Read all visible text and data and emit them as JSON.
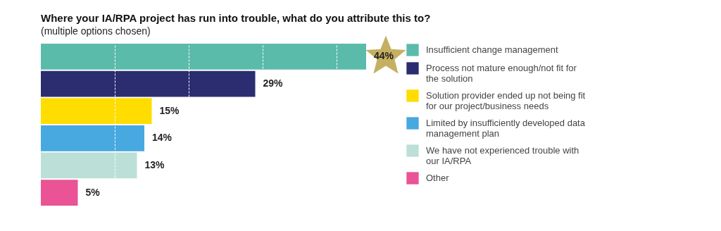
{
  "chart_data": {
    "type": "bar",
    "orientation": "horizontal",
    "title": "Where your IA/RPA project has run into trouble, what do you attribute this to?",
    "subtitle": "(multiple options chosen)",
    "categories": [
      null,
      null,
      null,
      null,
      null,
      null
    ],
    "series": [
      {
        "name": "Insufficient change management",
        "color": "#5bbbab",
        "values": [
          44,
          null,
          null,
          null,
          null,
          null
        ],
        "value_labels": [
          "44%",
          null,
          null,
          null,
          null,
          null
        ]
      },
      {
        "name": "Process not mature enough/not fit for the solution",
        "color": "#2b2d70",
        "values": [
          null,
          29,
          null,
          null,
          null,
          null
        ],
        "value_labels": [
          null,
          "29%",
          null,
          null,
          null,
          null
        ]
      },
      {
        "name": "Solution provider ended up not being fit for our project/business needs",
        "color": "#ffdd00",
        "values": [
          null,
          null,
          15,
          null,
          null,
          null
        ],
        "value_labels": [
          null,
          null,
          "15%",
          null,
          null,
          null
        ]
      },
      {
        "name": "Limited by insufficiently developed data management plan",
        "color": "#48a8e0",
        "values": [
          null,
          null,
          null,
          14,
          null,
          null
        ],
        "value_labels": [
          null,
          null,
          null,
          "14%",
          null,
          null
        ]
      },
      {
        "name": "We have not experienced trouble with our IA/RPA",
        "color": "#bce0d8",
        "values": [
          null,
          null,
          null,
          null,
          13,
          null
        ],
        "value_labels": [
          null,
          null,
          null,
          null,
          "13%",
          null
        ]
      },
      {
        "name": "Other",
        "color": "#ea5395",
        "values": [
          null,
          null,
          null,
          null,
          null,
          5
        ],
        "value_labels": [
          null,
          null,
          null,
          null,
          null,
          "5%"
        ]
      }
    ],
    "xticks": [
      {
        "value": 10,
        "label": null
      },
      {
        "value": 20,
        "label": null
      },
      {
        "value": 30,
        "label": null
      },
      {
        "value": 40,
        "label": null
      }
    ],
    "grid": "x",
    "legend": "right",
    "stacked": true
  }
}
